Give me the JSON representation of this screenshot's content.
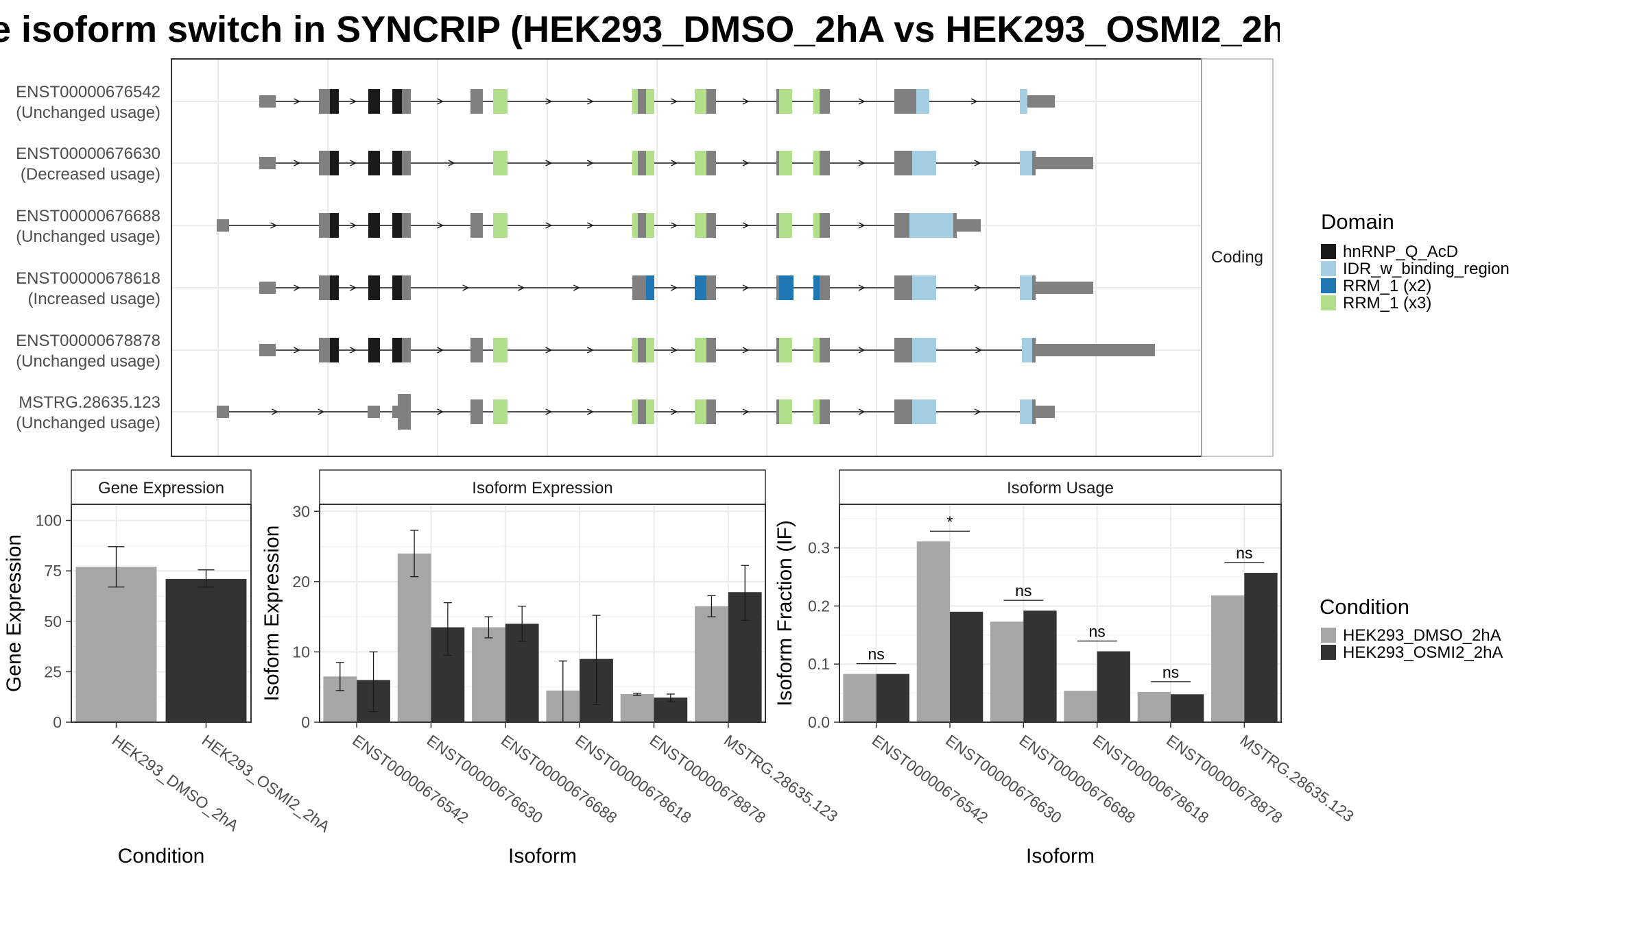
{
  "title": "e isoform switch in SYNCRIP (HEK293_DMSO_2hA vs HEK293_OSMI2_2h",
  "colors": {
    "exon": "#808080",
    "hnRNP_Q_AcD": "#1a1a1a",
    "IDR_w_binding_region": "#a6cee3",
    "RRM_1_x2": "#1f78b4",
    "RRM_1_x3": "#b2df8a",
    "cond1": "#a6a6a6",
    "cond2": "#333333"
  },
  "structure": {
    "facet_label": "Coding",
    "isoforms": [
      {
        "id": "ENST00000676542",
        "usage": "(Unchanged usage)"
      },
      {
        "id": "ENST00000676630",
        "usage": "(Decreased usage)"
      },
      {
        "id": "ENST00000676688",
        "usage": "(Unchanged usage)"
      },
      {
        "id": "ENST00000678618",
        "usage": "(Increased usage)"
      },
      {
        "id": "ENST00000678878",
        "usage": "(Unchanged usage)"
      },
      {
        "id": "MSTRG.28635.123",
        "usage": "(Unchanged usage)"
      }
    ]
  },
  "legend_domain": {
    "title": "Domain",
    "items": [
      {
        "label": "hnRNP_Q_AcD",
        "color": "#1a1a1a"
      },
      {
        "label": "IDR_w_binding_region",
        "color": "#a6cee3"
      },
      {
        "label": "RRM_1 (x2)",
        "color": "#1f78b4"
      },
      {
        "label": "RRM_1 (x3)",
        "color": "#b2df8a"
      }
    ]
  },
  "legend_condition": {
    "title": "Condition",
    "items": [
      {
        "label": "HEK293_DMSO_2hA",
        "color": "#a6a6a6"
      },
      {
        "label": "HEK293_OSMI2_2hA",
        "color": "#333333"
      }
    ]
  },
  "chart_data": [
    {
      "type": "bar",
      "title": "Gene Expression",
      "xlabel": "Condition",
      "ylabel": "Gene Expression",
      "ylim": [
        0,
        108
      ],
      "yticks": [
        0,
        25,
        50,
        75,
        100
      ],
      "categories": [
        "HEK293_DMSO_2hA",
        "HEK293_OSMI2_2hA"
      ],
      "values": [
        77,
        71
      ],
      "errors": [
        [
          67,
          87
        ],
        [
          67,
          75.5
        ]
      ]
    },
    {
      "type": "bar",
      "title": "Isoform Expression",
      "xlabel": "Isoform",
      "ylabel": "Isoform Expression",
      "ylim": [
        0,
        31
      ],
      "yticks": [
        0,
        10,
        20,
        30
      ],
      "categories": [
        "ENST00000676542",
        "ENST00000676630",
        "ENST00000676688",
        "ENST00000678618",
        "ENST00000678878",
        "MSTRG.28635.123"
      ],
      "series": [
        {
          "name": "HEK293_DMSO_2hA",
          "values": [
            6.5,
            24,
            13.5,
            4.5,
            4,
            16.5
          ],
          "errors": [
            [
              4.5,
              8.5
            ],
            [
              20.7,
              27.3
            ],
            [
              12,
              15
            ],
            [
              0,
              8.7
            ],
            [
              3.8,
              4.1
            ],
            [
              15,
              18
            ]
          ]
        },
        {
          "name": "HEK293_OSMI2_2hA",
          "values": [
            6,
            13.5,
            14,
            9,
            3.5,
            18.5
          ],
          "errors": [
            [
              1.5,
              10
            ],
            [
              9.5,
              17
            ],
            [
              11.5,
              16.5
            ],
            [
              2.5,
              15.2
            ],
            [
              2.9,
              4
            ],
            [
              14.5,
              22.3
            ]
          ]
        }
      ]
    },
    {
      "type": "bar",
      "title": "Isoform Usage",
      "xlabel": "Isoform",
      "ylabel": "Isoform Fraction (IF)",
      "ylim": [
        0,
        0.375
      ],
      "yticks": [
        0.0,
        0.1,
        0.2,
        0.3
      ],
      "categories": [
        "ENST00000676542",
        "ENST00000676630",
        "ENST00000676688",
        "ENST00000678618",
        "ENST00000678878",
        "MSTRG.28635.123"
      ],
      "series": [
        {
          "name": "HEK293_DMSO_2hA",
          "values": [
            0.083,
            0.311,
            0.173,
            0.054,
            0.052,
            0.218
          ]
        },
        {
          "name": "HEK293_OSMI2_2hA",
          "values": [
            0.083,
            0.19,
            0.192,
            0.122,
            0.048,
            0.257
          ]
        }
      ],
      "significance": [
        "ns",
        "*",
        "ns",
        "ns",
        "ns",
        "ns"
      ]
    }
  ]
}
